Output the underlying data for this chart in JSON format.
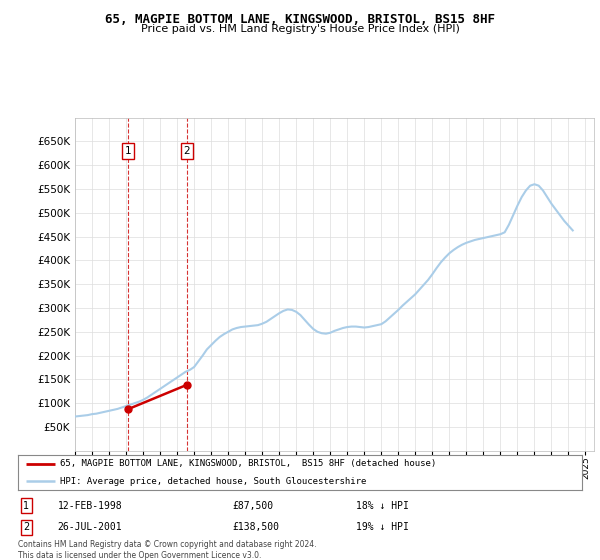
{
  "title": "65, MAGPIE BOTTOM LANE, KINGSWOOD, BRISTOL, BS15 8HF",
  "subtitle": "Price paid vs. HM Land Registry's House Price Index (HPI)",
  "legend_line1": "65, MAGPIE BOTTOM LANE, KINGSWOOD, BRISTOL,  BS15 8HF (detached house)",
  "legend_line2": "HPI: Average price, detached house, South Gloucestershire",
  "footer": "Contains HM Land Registry data © Crown copyright and database right 2024.\nThis data is licensed under the Open Government Licence v3.0.",
  "sale1_label": "1",
  "sale1_date": "12-FEB-1998",
  "sale1_price": "£87,500",
  "sale1_hpi": "18% ↓ HPI",
  "sale2_label": "2",
  "sale2_date": "26-JUL-2001",
  "sale2_price": "£138,500",
  "sale2_hpi": "19% ↓ HPI",
  "hpi_color": "#aacde8",
  "sale_color": "#cc0000",
  "grid_color": "#dddddd",
  "bg_color": "#ffffff",
  "ylim_min": 0,
  "ylim_max": 700000,
  "yticks": [
    50000,
    100000,
    150000,
    200000,
    250000,
    300000,
    350000,
    400000,
    450000,
    500000,
    550000,
    600000,
    650000
  ],
  "hpi_years": [
    1995.0,
    1995.25,
    1995.5,
    1995.75,
    1996.0,
    1996.25,
    1996.5,
    1996.75,
    1997.0,
    1997.25,
    1997.5,
    1997.75,
    1998.0,
    1998.25,
    1998.5,
    1998.75,
    1999.0,
    1999.25,
    1999.5,
    1999.75,
    2000.0,
    2000.25,
    2000.5,
    2000.75,
    2001.0,
    2001.25,
    2001.5,
    2001.75,
    2002.0,
    2002.25,
    2002.5,
    2002.75,
    2003.0,
    2003.25,
    2003.5,
    2003.75,
    2004.0,
    2004.25,
    2004.5,
    2004.75,
    2005.0,
    2005.25,
    2005.5,
    2005.75,
    2006.0,
    2006.25,
    2006.5,
    2006.75,
    2007.0,
    2007.25,
    2007.5,
    2007.75,
    2008.0,
    2008.25,
    2008.5,
    2008.75,
    2009.0,
    2009.25,
    2009.5,
    2009.75,
    2010.0,
    2010.25,
    2010.5,
    2010.75,
    2011.0,
    2011.25,
    2011.5,
    2011.75,
    2012.0,
    2012.25,
    2012.5,
    2012.75,
    2013.0,
    2013.25,
    2013.5,
    2013.75,
    2014.0,
    2014.25,
    2014.5,
    2014.75,
    2015.0,
    2015.25,
    2015.5,
    2015.75,
    2016.0,
    2016.25,
    2016.5,
    2016.75,
    2017.0,
    2017.25,
    2017.5,
    2017.75,
    2018.0,
    2018.25,
    2018.5,
    2018.75,
    2019.0,
    2019.25,
    2019.5,
    2019.75,
    2020.0,
    2020.25,
    2020.5,
    2020.75,
    2021.0,
    2021.25,
    2021.5,
    2021.75,
    2022.0,
    2022.25,
    2022.5,
    2022.75,
    2023.0,
    2023.25,
    2023.5,
    2023.75,
    2024.0,
    2024.25
  ],
  "hpi_values": [
    72000,
    73000,
    74000,
    75000,
    77000,
    78000,
    80000,
    82000,
    84000,
    86000,
    88000,
    91000,
    94000,
    97000,
    100000,
    103000,
    107000,
    112000,
    118000,
    124000,
    130000,
    136000,
    142000,
    148000,
    154000,
    160000,
    166000,
    170000,
    176000,
    188000,
    200000,
    213000,
    222000,
    231000,
    239000,
    245000,
    250000,
    255000,
    258000,
    260000,
    261000,
    262000,
    263000,
    264000,
    267000,
    271000,
    277000,
    283000,
    289000,
    294000,
    297000,
    296000,
    292000,
    285000,
    275000,
    265000,
    256000,
    250000,
    247000,
    246000,
    248000,
    252000,
    255000,
    258000,
    260000,
    261000,
    261000,
    260000,
    259000,
    260000,
    262000,
    264000,
    266000,
    272000,
    280000,
    288000,
    296000,
    305000,
    313000,
    321000,
    329000,
    339000,
    349000,
    359000,
    371000,
    384000,
    396000,
    406000,
    415000,
    422000,
    428000,
    433000,
    437000,
    440000,
    443000,
    445000,
    447000,
    449000,
    451000,
    453000,
    455000,
    459000,
    475000,
    495000,
    515000,
    533000,
    547000,
    557000,
    560000,
    557000,
    547000,
    533000,
    519000,
    507000,
    495000,
    483000,
    473000,
    463000
  ],
  "sale_years": [
    1998.12,
    2001.57
  ],
  "sale_values": [
    87500,
    138500
  ],
  "sale_labels": [
    "1",
    "2"
  ],
  "xmin": 1995,
  "xmax": 2025.5,
  "xtick_start": 1995,
  "xtick_end": 2026
}
